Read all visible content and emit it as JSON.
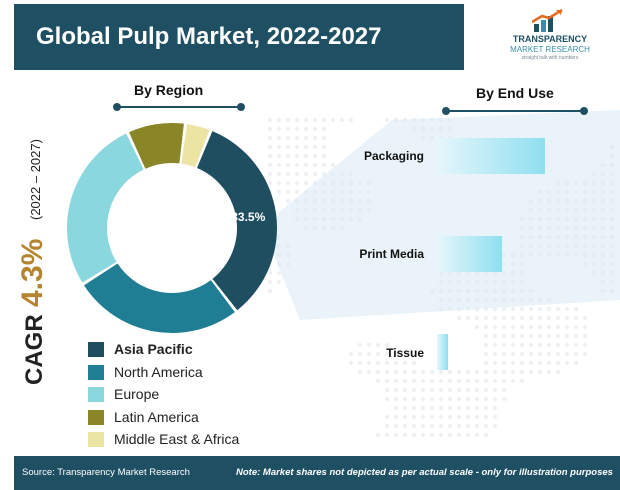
{
  "title": "Global Pulp Market, 2022-2027",
  "logo": {
    "line1": "TRANSPARENCY",
    "line2": "MARKET RESEARCH",
    "line3": "straight talk with numbers"
  },
  "cagr": {
    "label": "CAGR",
    "value": "4.3%",
    "period": "(2022 – 2027)"
  },
  "colors": {
    "header": "#1e4f63",
    "accent_cagr": "#b5842f",
    "beam": "#cfe4f0"
  },
  "chart_data": [
    {
      "type": "pie",
      "title": "By Region",
      "series": [
        {
          "name": "Asia Pacific",
          "value": 33.5,
          "color": "#1f4e61"
        },
        {
          "name": "North America",
          "value": 26.5,
          "color": "#1f7e93"
        },
        {
          "name": "Europe",
          "value": 27,
          "color": "#8ad8de"
        },
        {
          "name": "Latin America",
          "value": 9,
          "color": "#8a8527"
        },
        {
          "name": "Middle East & Africa",
          "value": 4,
          "color": "#ece4a3"
        }
      ],
      "labels": [
        {
          "series": "Asia Pacific",
          "text": "33.5%"
        }
      ],
      "legend": "bottom-left"
    },
    {
      "type": "bar",
      "title": "By End Use",
      "orientation": "horizontal",
      "categories": [
        "Packaging",
        "Print Media",
        "Tissue"
      ],
      "values": [
        100,
        60,
        10
      ],
      "note": "relative, not to scale"
    }
  ],
  "footer": {
    "source": "Source: Transparency Market Research",
    "note": "Note: Market shares not depicted as per actual scale - only for illustration purposes"
  }
}
